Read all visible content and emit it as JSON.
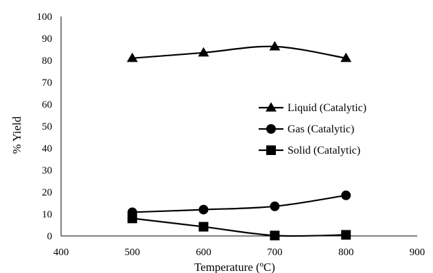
{
  "chart_data": {
    "type": "line",
    "title": "",
    "xlabel": "Temperature (ºC)",
    "ylabel": "% Yield",
    "xlim": [
      400,
      900
    ],
    "ylim": [
      0,
      100
    ],
    "xticks": [
      400,
      500,
      600,
      700,
      800,
      900
    ],
    "yticks": [
      0,
      10,
      20,
      30,
      40,
      50,
      60,
      70,
      80,
      90,
      100
    ],
    "grid": false,
    "legend_position": "center-right",
    "series": [
      {
        "name": "Liquid (Catalytic)",
        "marker": "triangle",
        "color": "#000000",
        "x": [
          500,
          600,
          700,
          800
        ],
        "y": [
          81,
          83.5,
          86.3,
          81
        ]
      },
      {
        "name": "Gas (Catalytic)",
        "marker": "circle",
        "color": "#000000",
        "x": [
          500,
          600,
          700,
          800
        ],
        "y": [
          10.8,
          12,
          13.5,
          18.5
        ]
      },
      {
        "name": "Solid (Catalytic)",
        "marker": "square",
        "color": "#000000",
        "x": [
          500,
          600,
          700,
          800
        ],
        "y": [
          8,
          4.2,
          0.2,
          0.5
        ]
      }
    ]
  }
}
